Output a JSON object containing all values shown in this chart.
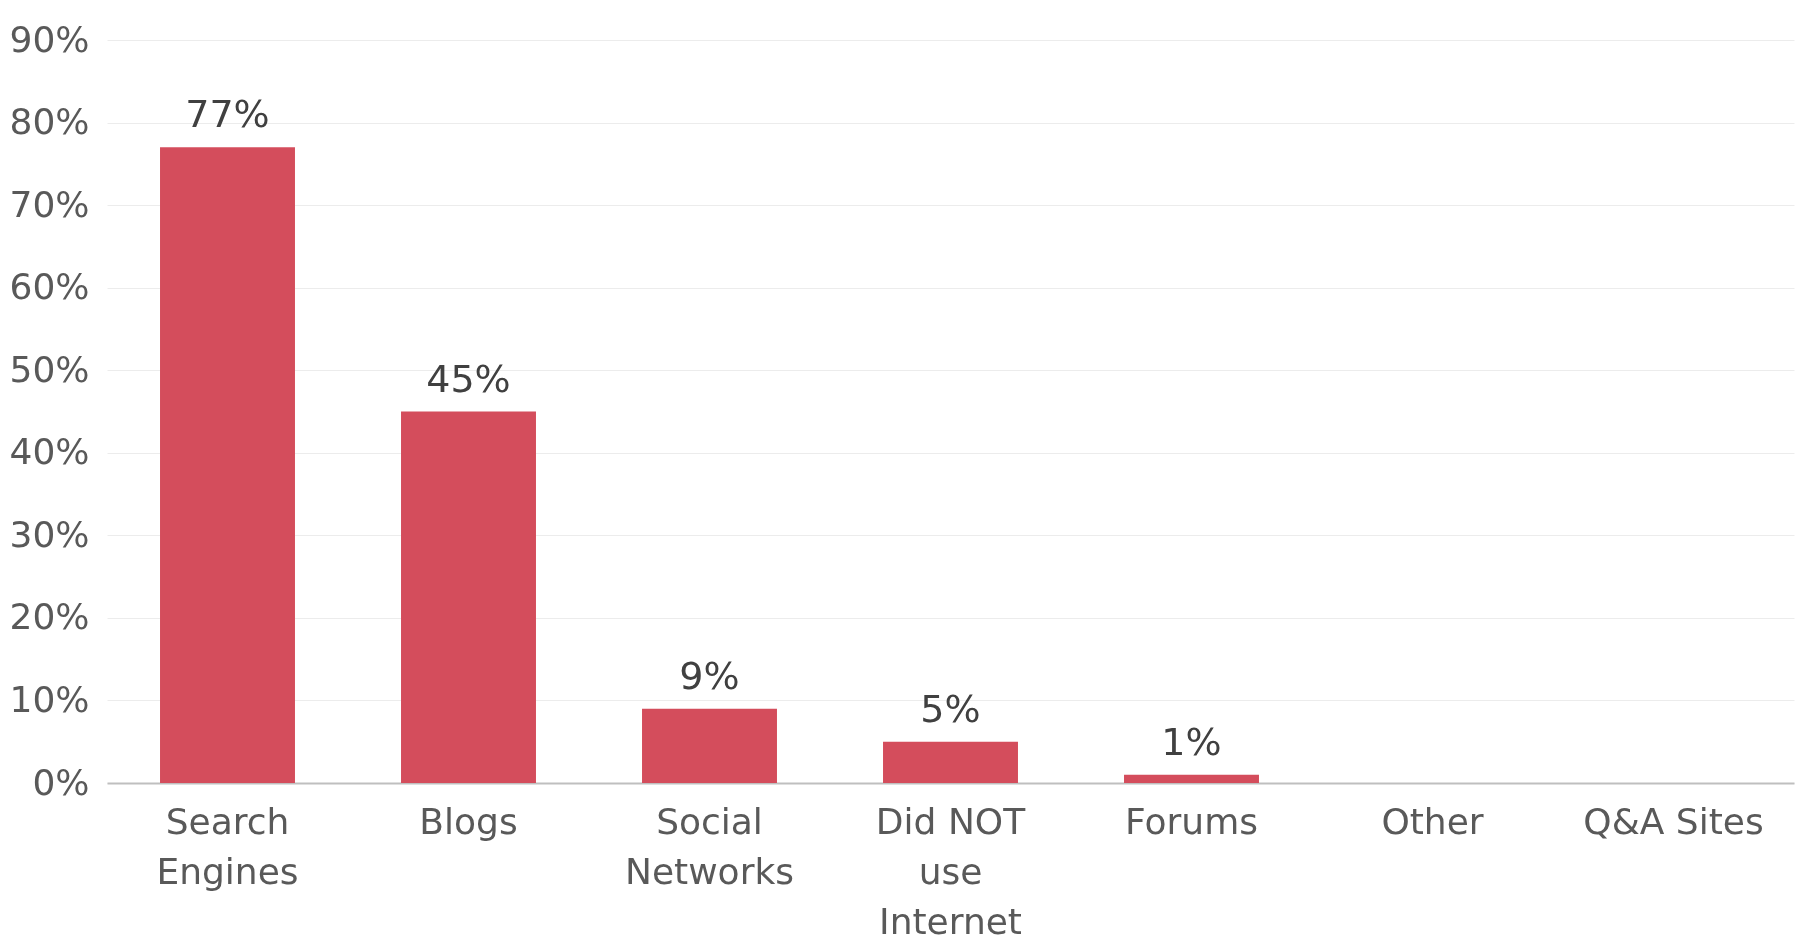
{
  "chart_data": {
    "type": "bar",
    "categories": [
      "Search Engines",
      "Blogs",
      "Social Networks",
      "Did NOT use Internet",
      "Forums",
      "Other",
      "Q&A Sites"
    ],
    "values": [
      77,
      45,
      9,
      5,
      1,
      0,
      0
    ],
    "value_labels": [
      "77%",
      "45%",
      "9%",
      "5%",
      "1%",
      null,
      null
    ],
    "color": "#d44d5c",
    "ylim": [
      0,
      90
    ],
    "yticks": [
      {
        "value": 0,
        "label": "0%"
      },
      {
        "value": 10,
        "label": "10%"
      },
      {
        "value": 20,
        "label": "20%"
      },
      {
        "value": 30,
        "label": "30%"
      },
      {
        "value": 40,
        "label": "40%"
      },
      {
        "value": 50,
        "label": "50%"
      },
      {
        "value": 60,
        "label": "60%"
      },
      {
        "value": 70,
        "label": "70%"
      },
      {
        "value": 80,
        "label": "80%"
      },
      {
        "value": 90,
        "label": "90%"
      }
    ],
    "grid": "y"
  }
}
